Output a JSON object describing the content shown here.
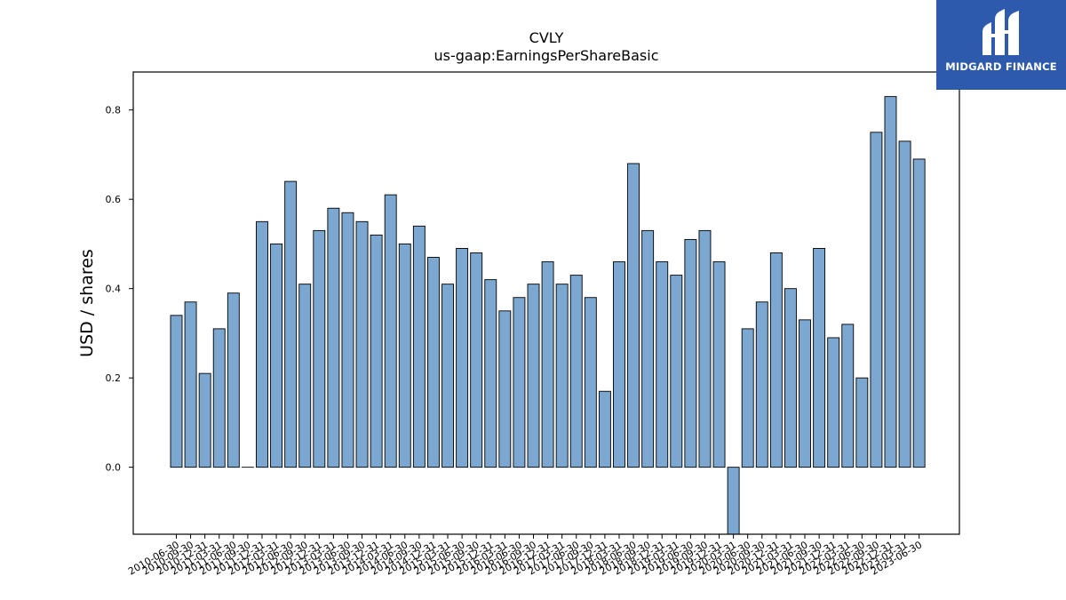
{
  "brand": {
    "name": "MIDGARD FINANCE",
    "background_color": "#2e5aad",
    "icon": "mf-monogram-icon"
  },
  "chart_data": {
    "type": "bar",
    "title": "CVLY",
    "subtitle": "us-gaap:EarningsPerShareBasic",
    "xlabel": "",
    "ylabel": "USD / shares",
    "ylim": [
      -0.15,
      0.885
    ],
    "yticks": [
      0.0,
      0.2,
      0.4,
      0.6,
      0.8
    ],
    "ytick_labels": [
      "0.0",
      "0.2",
      "0.4",
      "0.6",
      "0.8"
    ],
    "grid": false,
    "bar_color": "#7ba7d0",
    "edge_color": "#000000",
    "categories": [
      "2010-06-30",
      "2010-09-30",
      "2010-12-31",
      "2011-03-31",
      "2011-06-30",
      "2011-09-30",
      "2011-12-31",
      "2012-03-31",
      "2012-06-30",
      "2012-09-30",
      "2012-12-31",
      "2013-03-31",
      "2013-06-30",
      "2013-09-30",
      "2013-12-31",
      "2014-03-31",
      "2014-06-30",
      "2014-09-30",
      "2014-12-31",
      "2015-03-31",
      "2015-06-30",
      "2015-09-30",
      "2015-12-31",
      "2016-03-31",
      "2016-06-30",
      "2016-09-30",
      "2016-12-31",
      "2017-03-31",
      "2017-06-30",
      "2017-09-30",
      "2017-12-31",
      "2018-03-31",
      "2018-06-30",
      "2018-09-30",
      "2018-12-31",
      "2019-03-31",
      "2019-06-30",
      "2019-09-30",
      "2019-12-31",
      "2020-03-31",
      "2020-06-30",
      "2020-09-30",
      "2020-12-31",
      "2021-03-31",
      "2021-06-30",
      "2021-09-30",
      "2021-12-31",
      "2022-03-31",
      "2022-06-30",
      "2022-09-30",
      "2022-12-31",
      "2023-03-31",
      "2023-06-30"
    ],
    "values": [
      0.34,
      0.37,
      0.21,
      0.31,
      0.39,
      0.0,
      0.55,
      0.5,
      0.64,
      0.41,
      0.53,
      0.58,
      0.57,
      0.55,
      0.52,
      0.61,
      0.5,
      0.54,
      0.47,
      0.41,
      0.49,
      0.48,
      0.42,
      0.35,
      0.38,
      0.41,
      0.46,
      0.41,
      0.43,
      0.38,
      0.17,
      0.46,
      0.68,
      0.53,
      0.46,
      0.43,
      0.51,
      0.53,
      0.46,
      -0.16,
      0.31,
      0.37,
      0.48,
      0.4,
      0.33,
      0.49,
      0.29,
      0.32,
      0.2,
      0.75,
      0.83,
      0.73,
      0.69
    ]
  }
}
